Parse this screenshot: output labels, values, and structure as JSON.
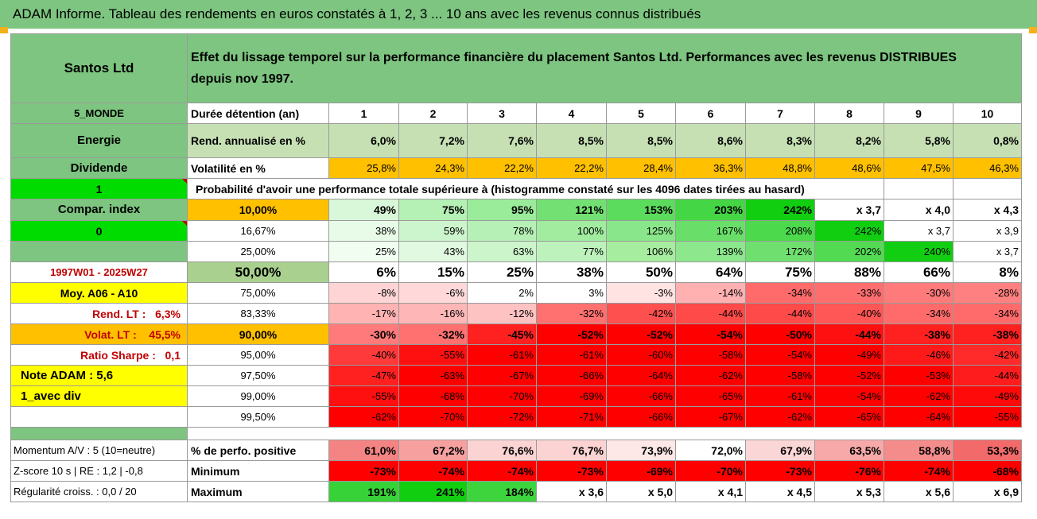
{
  "title": "ADAM Informe. Tableau des rendements en euros constatés à 1, 2, 3 ... 10 ans avec les revenus connus distribués",
  "company": "Santos Ltd",
  "header_text": "Effet du lissage temporel sur la performance financière du placement Santos Ltd. Performances avec les revenus DISTRIBUES depuis nov 1997.",
  "side": {
    "zone": "5_MONDE",
    "sector": "Energie",
    "type": "Dividende",
    "flag1": "1",
    "compar": "Compar. index",
    "flag0": "0",
    "period": "1997W01 - 2025W27",
    "moy": "Moy. A06 - A10",
    "rend_lt_label": "Rend. LT :",
    "rend_lt_value": "6,3%",
    "volat_lt_label": "Volat. LT :",
    "volat_lt_value": "45,5%",
    "sharpe_label": "Ratio Sharpe :",
    "sharpe_value": "0,1",
    "note": "Note ADAM : 5,6",
    "div": "1_avec div",
    "momentum": "Momentum A/V : 5 (10=neutre)",
    "zscore": "Z-score 10 s | RE : 1,2 | -0,8",
    "regularite": "Régularité croiss. : 0,0 / 20"
  },
  "labels": {
    "duree": "Durée détention (an)",
    "rend": "Rend. annualisé en %",
    "volat": "Volatilité en %",
    "proba": "Probabilité d'avoir une performance totale supérieure à (histogramme constaté sur les 4096 dates tirées au hasard)",
    "perf_pos": "% de perfo. positive",
    "minimum": "Minimum",
    "maximum": "Maximum"
  },
  "years": [
    "1",
    "2",
    "3",
    "4",
    "5",
    "6",
    "7",
    "8",
    "9",
    "10"
  ],
  "rend": [
    "6,0%",
    "7,2%",
    "7,6%",
    "8,5%",
    "8,5%",
    "8,6%",
    "8,3%",
    "8,2%",
    "5,8%",
    "0,8%"
  ],
  "volat": [
    "25,8%",
    "24,3%",
    "22,2%",
    "22,2%",
    "28,4%",
    "36,3%",
    "48,8%",
    "48,6%",
    "47,5%",
    "46,3%"
  ],
  "proba_rows": [
    {
      "pct": "10,00%",
      "values": [
        "49%",
        "75%",
        "95%",
        "121%",
        "153%",
        "203%",
        "242%",
        "x 3,7",
        "x 4,0",
        "x 4,3"
      ]
    },
    {
      "pct": "16,67%",
      "values": [
        "38%",
        "59%",
        "78%",
        "100%",
        "125%",
        "167%",
        "208%",
        "242%",
        "x 3,7",
        "x 3,9"
      ]
    },
    {
      "pct": "25,00%",
      "values": [
        "25%",
        "43%",
        "63%",
        "77%",
        "106%",
        "139%",
        "172%",
        "202%",
        "240%",
        "x 3,7"
      ]
    },
    {
      "pct": "50,00%",
      "values": [
        "6%",
        "15%",
        "25%",
        "38%",
        "50%",
        "64%",
        "75%",
        "88%",
        "66%",
        "8%"
      ]
    },
    {
      "pct": "75,00%",
      "values": [
        "-8%",
        "-6%",
        "2%",
        "3%",
        "-3%",
        "-14%",
        "-34%",
        "-33%",
        "-30%",
        "-28%"
      ]
    },
    {
      "pct": "83,33%",
      "values": [
        "-17%",
        "-16%",
        "-12%",
        "-32%",
        "-42%",
        "-44%",
        "-44%",
        "-40%",
        "-34%",
        "-34%"
      ]
    },
    {
      "pct": "90,00%",
      "values": [
        "-30%",
        "-32%",
        "-45%",
        "-52%",
        "-52%",
        "-54%",
        "-50%",
        "-44%",
        "-38%",
        "-38%"
      ]
    },
    {
      "pct": "95,00%",
      "values": [
        "-40%",
        "-55%",
        "-61%",
        "-61%",
        "-60%",
        "-58%",
        "-54%",
        "-49%",
        "-46%",
        "-42%"
      ]
    },
    {
      "pct": "97,50%",
      "values": [
        "-47%",
        "-63%",
        "-67%",
        "-66%",
        "-64%",
        "-62%",
        "-58%",
        "-52%",
        "-53%",
        "-44%"
      ]
    },
    {
      "pct": "99,00%",
      "values": [
        "-55%",
        "-68%",
        "-70%",
        "-69%",
        "-66%",
        "-65%",
        "-61%",
        "-54%",
        "-62%",
        "-49%"
      ]
    },
    {
      "pct": "99,50%",
      "values": [
        "-62%",
        "-70%",
        "-72%",
        "-71%",
        "-66%",
        "-67%",
        "-62%",
        "-65%",
        "-64%",
        "-55%"
      ]
    }
  ],
  "perf_pos": [
    "61,0%",
    "67,2%",
    "76,6%",
    "76,7%",
    "73,9%",
    "72,0%",
    "67,9%",
    "63,5%",
    "58,8%",
    "53,3%"
  ],
  "minimum": [
    "-73%",
    "-74%",
    "-74%",
    "-73%",
    "-69%",
    "-70%",
    "-73%",
    "-76%",
    "-74%",
    "-68%"
  ],
  "maximum": [
    "191%",
    "241%",
    "184%",
    "x 3,6",
    "x 5,0",
    "x 4,1",
    "x 4,5",
    "x 5,3",
    "x 5,6",
    "x 6,9"
  ],
  "colors": {
    "title_green": "#7dc580",
    "rend_green": "#c6e0b4",
    "volat_orange": "#ffc000",
    "bright_green": "#00dc00",
    "red": "#ff0000",
    "yellow": "#ffff00",
    "label_red": "#c00000"
  },
  "cell_colors": {
    "proba": [
      [
        "#d9f7d9",
        "#b5f0b5",
        "#9aeb9a",
        "#72e072",
        "#5cdc5c",
        "#44d644",
        "#11ce11",
        "#ffffff",
        "#ffffff",
        "#ffffff"
      ],
      [
        "#e8fbe8",
        "#cdf5cd",
        "#b6f0b6",
        "#a1ec9f",
        "#8ae68a",
        "#69df69",
        "#4cd94c",
        "#11ce11",
        "#ffffff",
        "#ffffff"
      ],
      [
        "#f2fdf2",
        "#e0f9e0",
        "#ccf5cc",
        "#bdf2bd",
        "#a7ed9f",
        "#8de78d",
        "#6fe06f",
        "#53da53",
        "#12ce12",
        "#ffffff"
      ],
      [
        "#ffffff",
        "#ffffff",
        "#ffffff",
        "#ffffff",
        "#ffffff",
        "#ffffff",
        "#ffffff",
        "#ffffff",
        "#ffffff",
        "#ffffff"
      ],
      [
        "#ffd4d4",
        "#ffd9d9",
        "#ffffff",
        "#ffffff",
        "#ffe2e2",
        "#ffb0b0",
        "#ff6b6b",
        "#ff6e6e",
        "#ff7a7a",
        "#ff8080"
      ],
      [
        "#ffb3b3",
        "#ffb6b6",
        "#ffc2c2",
        "#ff7070",
        "#ff5050",
        "#ff4a4a",
        "#ff4a4a",
        "#ff5656",
        "#ff6b6b",
        "#ff6b6b"
      ],
      [
        "#ff7a7a",
        "#ff7070",
        "#ff2020",
        "#ff0000",
        "#ff0000",
        "#ff0000",
        "#ff0000",
        "#ff1010",
        "#ff2020",
        "#ff2020"
      ],
      [
        "#ff3a3a",
        "#ff1010",
        "#ff0000",
        "#ff0000",
        "#ff0000",
        "#ff0000",
        "#ff0000",
        "#ff0000",
        "#ff1a1a",
        "#ff2a2a"
      ],
      [
        "#ff2020",
        "#ff0000",
        "#ff0000",
        "#ff0000",
        "#ff0000",
        "#ff0000",
        "#ff0000",
        "#ff0000",
        "#ff0000",
        "#ff1c1c"
      ],
      [
        "#ff1010",
        "#ff0000",
        "#ff0000",
        "#ff0000",
        "#ff0000",
        "#ff0000",
        "#ff0000",
        "#ff0000",
        "#ff0000",
        "#ff0a0a"
      ],
      [
        "#ff0000",
        "#ff0000",
        "#ff0000",
        "#ff0000",
        "#ff0000",
        "#ff0000",
        "#ff0000",
        "#ff0000",
        "#ff0000",
        "#ff0000"
      ]
    ],
    "perf_pos": [
      "#f48484",
      "#f6a0a0",
      "#fbd3d3",
      "#fbd3d3",
      "#fde7e7",
      "#ffffff",
      "#fbd6d6",
      "#f7a8a8",
      "#f58c8c",
      "#f26a6a"
    ],
    "minimum": [
      "#ff0000",
      "#ff0000",
      "#ff0000",
      "#ff0000",
      "#ff0000",
      "#ff0000",
      "#ff0000",
      "#ff0000",
      "#ff0000",
      "#ff0000"
    ],
    "maximum": [
      "#37d237",
      "#11ce11",
      "#3ed43e",
      "#ffffff",
      "#ffffff",
      "#ffffff",
      "#ffffff",
      "#ffffff",
      "#ffffff",
      "#ffffff"
    ]
  }
}
